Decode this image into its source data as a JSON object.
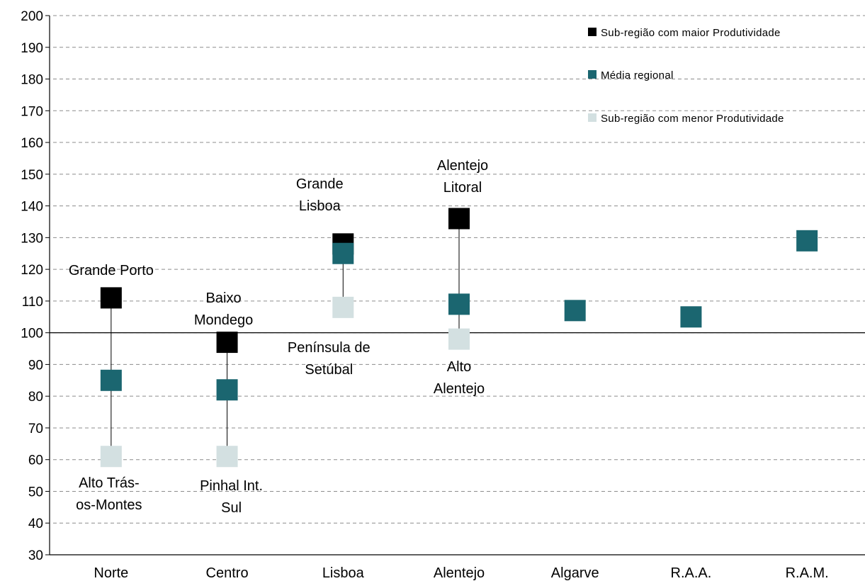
{
  "chart_data": {
    "type": "scatter",
    "title": "",
    "xlabel": "",
    "ylabel": "",
    "ylim": [
      30,
      200
    ],
    "ytick_step": 10,
    "grid": true,
    "reference_line": 100,
    "legend_position": "top-right",
    "categories": [
      "Norte",
      "Centro",
      "Lisboa",
      "Alentejo",
      "Algarve",
      "R.A.A.",
      "R.A.M."
    ],
    "series": [
      {
        "name": "Sub-região com maior Produtividade",
        "color": "#000000",
        "values": [
          111,
          97,
          128,
          136,
          null,
          null,
          null
        ]
      },
      {
        "name": "Média regional",
        "color": "#1b6670",
        "values": [
          85,
          82,
          125,
          109,
          107,
          105,
          129
        ]
      },
      {
        "name": "Sub-região com menor Produtividade",
        "color": "#d3e0e1",
        "values": [
          61,
          61,
          108,
          98,
          null,
          null,
          null
        ]
      }
    ],
    "annotations": [
      {
        "category": "Norte",
        "series": "max",
        "lines": [
          "Grande Porto"
        ]
      },
      {
        "category": "Norte",
        "series": "min",
        "lines": [
          "Alto Trás-",
          "os-Montes"
        ]
      },
      {
        "category": "Centro",
        "series": "max",
        "lines": [
          "Baixo",
          "Mondego"
        ]
      },
      {
        "category": "Centro",
        "series": "min",
        "lines": [
          "Pinhal Int.",
          "Sul"
        ]
      },
      {
        "category": "Lisboa",
        "series": "max",
        "lines": [
          "Grande",
          "Lisboa"
        ]
      },
      {
        "category": "Lisboa",
        "series": "min",
        "lines": [
          "Península de",
          "Setúbal"
        ]
      },
      {
        "category": "Alentejo",
        "series": "max",
        "lines": [
          "Alentejo",
          "Litoral"
        ]
      },
      {
        "category": "Alentejo",
        "series": "min",
        "lines": [
          "Alto",
          "Alentejo"
        ]
      }
    ]
  }
}
